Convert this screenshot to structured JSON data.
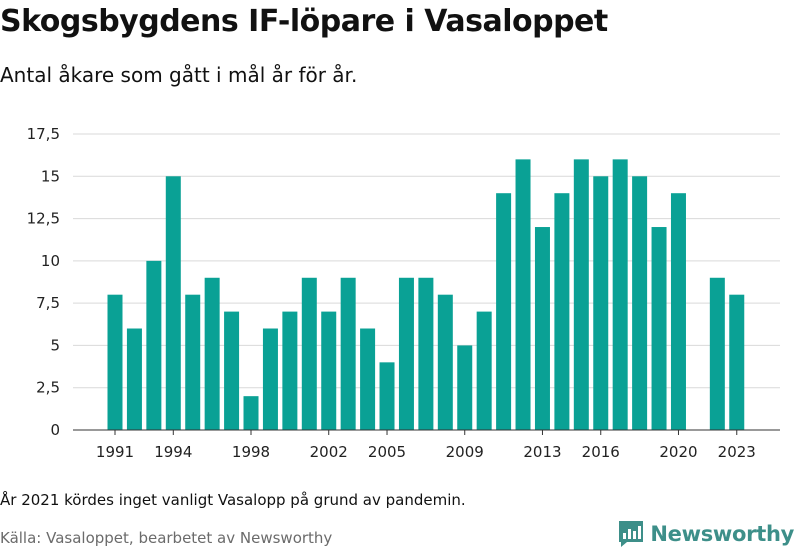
{
  "title": "Skogsbygdens IF-löpare i Vasaloppet",
  "subtitle": "Antal åkare som gått i mål år för år.",
  "note": "År 2021 kördes inget vanligt Vasalopp på grund av pandemin.",
  "source": "Källa: Vasaloppet, bearbetet av Newsworthy",
  "brand": {
    "name": "Newsworthy",
    "icon": "newsworthy-logo-icon"
  },
  "colors": {
    "bar": "#0aa195",
    "grid": "#d9d9d9",
    "brand": "#3d8f89"
  },
  "chart_data": {
    "type": "bar",
    "title": "Skogsbygdens IF-löpare i Vasaloppet",
    "subtitle": "Antal åkare som gått i mål år för år.",
    "xlabel": "",
    "ylabel": "",
    "x": [
      1991,
      1992,
      1993,
      1994,
      1995,
      1996,
      1997,
      1998,
      1999,
      2000,
      2001,
      2002,
      2003,
      2004,
      2005,
      2006,
      2007,
      2008,
      2009,
      2010,
      2011,
      2012,
      2013,
      2014,
      2015,
      2016,
      2017,
      2018,
      2019,
      2020,
      2021,
      2022,
      2023
    ],
    "values": [
      8,
      6,
      10,
      15,
      8,
      9,
      7,
      2,
      6,
      7,
      9,
      7,
      9,
      6,
      4,
      9,
      9,
      8,
      5,
      7,
      14,
      16,
      12,
      14,
      16,
      15,
      16,
      15,
      12,
      14,
      null,
      9,
      8
    ],
    "x_tick_labels": [
      "1991",
      "1994",
      "1998",
      "2002",
      "2005",
      "2009",
      "2013",
      "2016",
      "2020",
      "2023"
    ],
    "y_tick_labels": [
      "0",
      "2,5",
      "5",
      "7,5",
      "10",
      "12,5",
      "15",
      "17,5"
    ],
    "y_ticks": [
      0,
      2.5,
      5,
      7.5,
      10,
      12.5,
      15,
      17.5
    ],
    "ylim": [
      0,
      17.5
    ],
    "grid": true,
    "legend": "none"
  }
}
